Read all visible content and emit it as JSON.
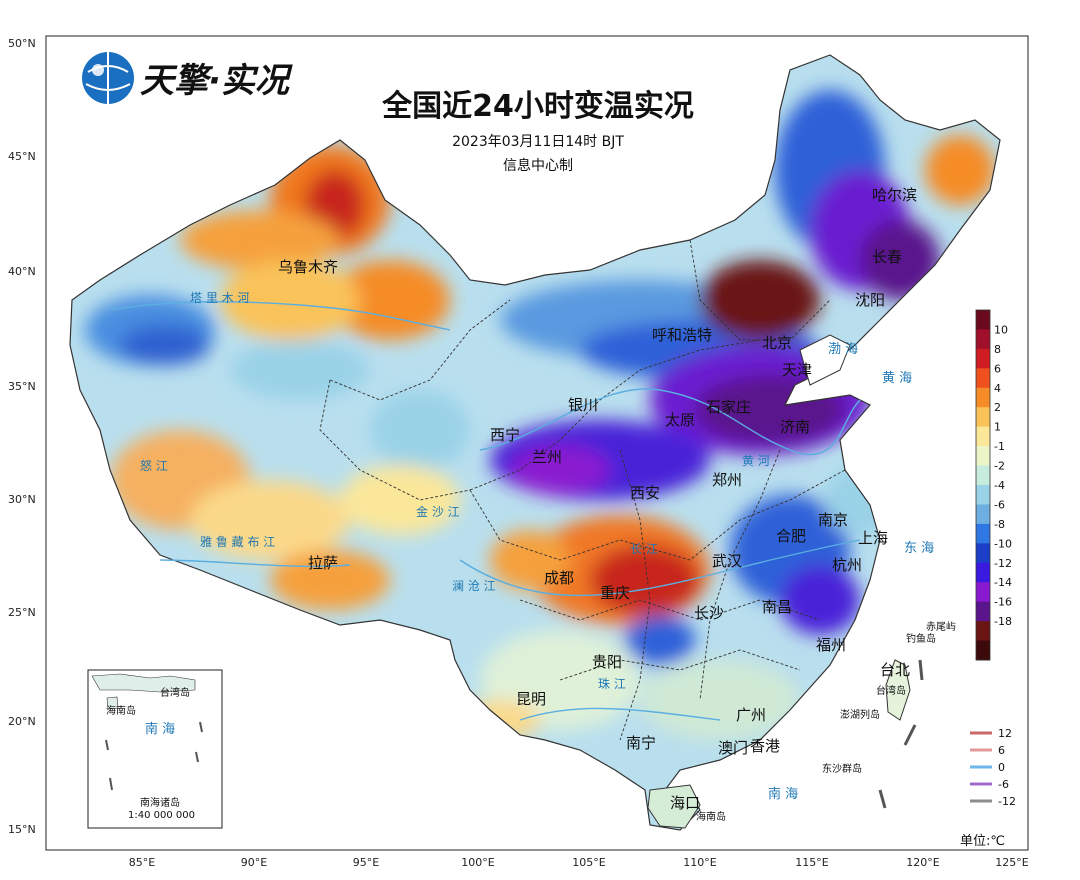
{
  "title": "全国近24小时变温实况",
  "time": "2023年03月11日14时 BJT",
  "producer": "信息中心制",
  "logo_text": "天擎·实况",
  "unit": "单位:℃",
  "lat_labels": [
    "50°N",
    "45°N",
    "40°N",
    "35°N",
    "30°N",
    "25°N",
    "20°N",
    "15°N"
  ],
  "lon_labels": [
    "85°E",
    "90°E",
    "95°E",
    "100°E",
    "105°E",
    "110°E",
    "115°E",
    "120°E",
    "125°E"
  ],
  "colorbar": {
    "labels": [
      "10",
      "8",
      "6",
      "4",
      "2",
      "1",
      "-1",
      "-2",
      "-4",
      "-6",
      "-8",
      "-10",
      "-12",
      "-14",
      "-16",
      "-18"
    ],
    "colors": [
      "#6b0a1e",
      "#a0102a",
      "#d01c23",
      "#f0501e",
      "#f58c28",
      "#fac35a",
      "#fbe79a",
      "#eaf5c8",
      "#c5ecdc",
      "#9ad2e8",
      "#6eaee0",
      "#2f78e4",
      "#1b3fc8",
      "#3a1ae0",
      "#8a1ad0",
      "#5a148c",
      "#6a1414",
      "#3c0a0a"
    ]
  },
  "contour_legend": {
    "items": [
      {
        "label": "12",
        "color": "#c96a6a"
      },
      {
        "label": "6",
        "color": "#e39a9a"
      },
      {
        "label": "0",
        "color": "#6fb7ea"
      },
      {
        "label": "-6",
        "color": "#a06ac8"
      },
      {
        "label": "-12",
        "color": "#8c8c8c"
      }
    ]
  },
  "cities": {
    "wulumuqi": "乌鲁木齐",
    "haerbin": "哈尔滨",
    "changchun": "长春",
    "shenyang": "沈阳",
    "huhehaote": "呼和浩特",
    "beijing": "北京",
    "tianjin": "天津",
    "shijiazhuang": "石家庄",
    "taiyuan": "太原",
    "jinan": "济南",
    "yinchuan": "银川",
    "xining": "西宁",
    "lanzhou": "兰州",
    "xian": "西安",
    "zhengzhou": "郑州",
    "nanjing": "南京",
    "hefei": "合肥",
    "shanghai": "上海",
    "hangzhou": "杭州",
    "wuhan": "武汉",
    "chengdu": "成都",
    "chongqing": "重庆",
    "changsha": "长沙",
    "nanchang": "南昌",
    "guiyang": "贵阳",
    "fuzhou": "福州",
    "taibei": "台北",
    "kunming": "昆明",
    "lasa": "拉萨",
    "guangzhou": "广州",
    "nanning": "南宁",
    "aomen": "澳门",
    "xianggang": "香港",
    "haikou": "海口"
  },
  "rivers": {
    "talimu": "塔 里 木 河",
    "yaluzangbu": "雅 鲁 藏 布 江",
    "nujiang": "怒 江",
    "lancang": "澜 沧 江",
    "jinsha": "金 沙 江",
    "huanghe": "黄 河",
    "changjiang": "长 江",
    "zhujiang": "珠 江"
  },
  "seas": {
    "bohai": "渤 海",
    "huanghai": "黄 海",
    "donghai": "东 海",
    "nanhai": "南 海",
    "inset_nanhai": "南 海"
  },
  "islands": {
    "chiwei": "赤尾屿",
    "diaoyu": "钓鱼岛",
    "taiwan": "台湾岛",
    "penghu": "澎湖列岛",
    "dongsha": "东沙群岛",
    "hainan": "海南岛",
    "inset_taiwan": "台湾岛",
    "inset_hainan": "海南岛",
    "inset_nanhai_islands": "南海诸岛",
    "inset_scale": "1:40 000 000"
  }
}
